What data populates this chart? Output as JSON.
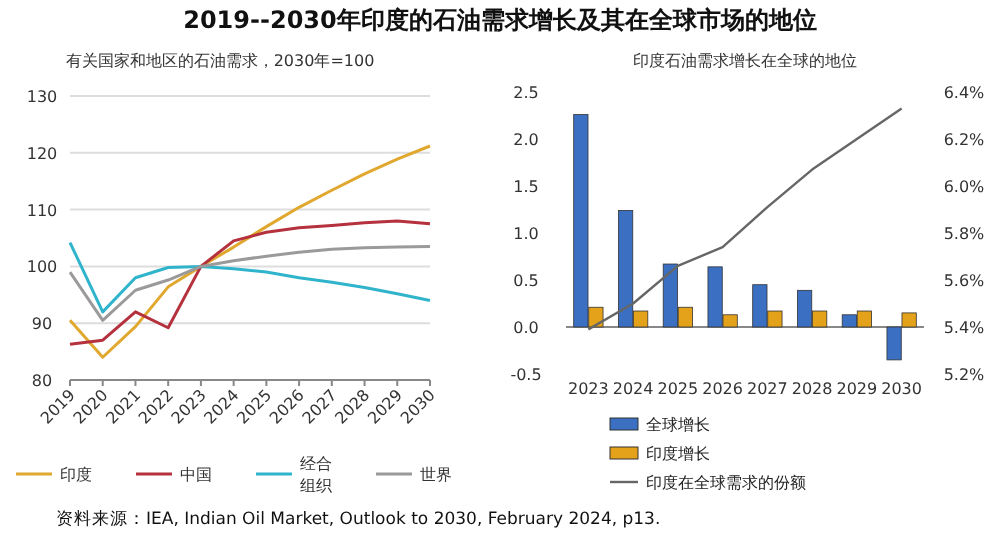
{
  "chart_data": [
    {
      "type": "line",
      "title": "2019--2030年印度的石油需求增长及其在全球市场的地位",
      "subtitle": "有关国家和地区的石油需求，2030年=100",
      "categories": [
        "2019",
        "2020",
        "2021",
        "2022",
        "2023",
        "2024",
        "2025",
        "2026",
        "2027",
        "2028",
        "2029",
        "2030"
      ],
      "series": [
        {
          "name": "印度",
          "color": "#e0a82e",
          "values": [
            90.5,
            84,
            89.4,
            96.4,
            100,
            103.4,
            107,
            110.4,
            113.4,
            116.3,
            118.9,
            121.2
          ]
        },
        {
          "name": "中国",
          "color": "#b5313d",
          "values": [
            86.3,
            87,
            92,
            89.2,
            100,
            104.5,
            106,
            106.8,
            107.2,
            107.7,
            108,
            107.5
          ]
        },
        {
          "name": "经合组织",
          "color": "#30b4cc",
          "values": [
            104.2,
            92,
            98,
            99.8,
            100,
            99.6,
            99,
            98,
            97.2,
            96.3,
            95.2,
            94
          ]
        },
        {
          "name": "世界",
          "color": "#9a9a9a",
          "values": [
            99,
            90.5,
            95.8,
            97.6,
            100,
            101,
            101.8,
            102.5,
            103,
            103.3,
            103.4,
            103.5
          ]
        }
      ],
      "ylim": [
        80,
        130
      ],
      "yticks": [
        80,
        90,
        100,
        110,
        120,
        130
      ],
      "grid": "y",
      "legend": "bottom",
      "annotations": [
        "资料来源：IEA, Indian Oil Market, Outlook to 2030, February 2024, p13."
      ]
    },
    {
      "type": "bar",
      "title": "印度石油需求增长在全球的地位",
      "categories": [
        "2023",
        "2024",
        "2025",
        "2026",
        "2027",
        "2028",
        "2029",
        "2030"
      ],
      "series": [
        {
          "name": "全球增长",
          "color": "#3b6fc2",
          "values": [
            2.26,
            1.24,
            0.67,
            0.64,
            0.45,
            0.39,
            0.13,
            -0.35
          ]
        },
        {
          "name": "印度增长",
          "color": "#e3a21a",
          "values": [
            0.21,
            0.17,
            0.21,
            0.13,
            0.17,
            0.17,
            0.17,
            0.15
          ]
        },
        {
          "name": "印度在全球需求的份额",
          "type": "line",
          "axis": "y2",
          "color": "#666666",
          "values": [
            5.39,
            5.5,
            5.66,
            5.74,
            5.91,
            6.07,
            6.2,
            6.33
          ]
        }
      ],
      "ylim": [
        -0.5,
        2.5
      ],
      "yticks": [
        -0.5,
        {
          "value": 0,
          "label": "0.0"
        },
        0.5,
        {
          "value": 1,
          "label": "1.0"
        },
        1.5,
        {
          "value": 2,
          "label": "2.0"
        },
        2.5
      ],
      "y2lim": [
        5.2,
        6.4
      ],
      "y2ticks": [
        {
          "value": 5.2,
          "label": "5.2%"
        },
        {
          "value": 5.4,
          "label": "5.4%"
        },
        {
          "value": 5.6,
          "label": "5.6%"
        },
        {
          "value": 5.8,
          "label": "5.8%"
        },
        {
          "value": 6.0,
          "label": "6.0%"
        },
        {
          "value": 6.2,
          "label": "6.2%"
        },
        {
          "value": 6.4,
          "label": "6.4%"
        }
      ],
      "legend": "bottom"
    }
  ]
}
